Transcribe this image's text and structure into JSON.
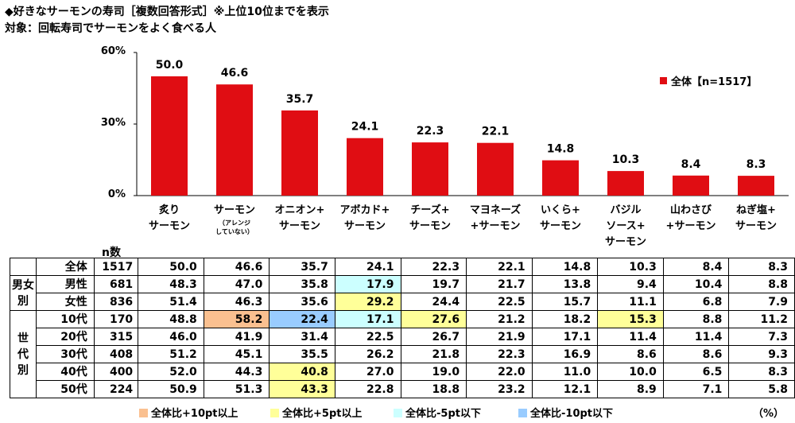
{
  "title_line1": "◆好きなサーモンの寿司［複数回答形式］※上位10位までを表示",
  "title_line2": "対象：回転寿司でサーモンをよく食べる人",
  "colors": {
    "bar": "#e00d13",
    "plus10": "#fac090",
    "plus5": "#ffff99",
    "minus5": "#ccffff",
    "minus10": "#99ccff"
  },
  "chart_data": {
    "type": "bar",
    "categories": [
      {
        "line1": "炙り",
        "line2": "サーモン",
        "sub": ""
      },
      {
        "line1": "サーモン",
        "line2": "",
        "sub": "（アレンジ していない）"
      },
      {
        "line1": "オニオン+",
        "line2": "サーモン",
        "sub": ""
      },
      {
        "line1": "アボカド+",
        "line2": "サーモン",
        "sub": ""
      },
      {
        "line1": "チーズ+",
        "line2": "サーモン",
        "sub": ""
      },
      {
        "line1": "マヨネーズ",
        "line2": "+サーモン",
        "sub": ""
      },
      {
        "line1": "いくら+",
        "line2": "サーモン",
        "sub": ""
      },
      {
        "line1": "バジル",
        "line2": "ソース+",
        "line3": "サーモン",
        "sub": ""
      },
      {
        "line1": "山わさび",
        "line2": "+サーモン",
        "sub": ""
      },
      {
        "line1": "ねぎ塩+",
        "line2": "サーモン",
        "sub": ""
      }
    ],
    "series": [
      {
        "name": "全体【n=1517】",
        "values": [
          50.0,
          46.6,
          35.7,
          24.1,
          22.3,
          22.1,
          14.8,
          10.3,
          8.4,
          8.3
        ]
      }
    ],
    "value_labels": [
      "50.0",
      "46.6",
      "35.7",
      "24.1",
      "22.3",
      "22.1",
      "14.8",
      "10.3",
      "8.4",
      "8.3"
    ],
    "yticks": [
      "60%",
      "30%",
      "0%"
    ],
    "ylim": [
      0,
      60
    ],
    "legend_position": "top-right",
    "table": {
      "n_header": "n数",
      "rows": [
        {
          "group": "",
          "label": "全体",
          "n": "1517",
          "values": [
            "50.0",
            "46.6",
            "35.7",
            "24.1",
            "22.3",
            "22.1",
            "14.8",
            "10.3",
            "8.4",
            "8.3"
          ],
          "hl": [
            "",
            "",
            "",
            "",
            "",
            "",
            "",
            "",
            "",
            ""
          ]
        },
        {
          "group": "男女別",
          "label": "男性",
          "n": "681",
          "values": [
            "48.3",
            "47.0",
            "35.8",
            "17.9",
            "19.7",
            "21.7",
            "13.8",
            "9.4",
            "10.4",
            "8.8"
          ],
          "hl": [
            "",
            "",
            "",
            "minus5",
            "",
            "",
            "",
            "",
            "",
            ""
          ]
        },
        {
          "group": "",
          "label": "女性",
          "n": "836",
          "values": [
            "51.4",
            "46.3",
            "35.6",
            "29.2",
            "24.4",
            "22.5",
            "15.7",
            "11.1",
            "6.8",
            "7.9"
          ],
          "hl": [
            "",
            "",
            "",
            "plus5",
            "",
            "",
            "",
            "",
            "",
            ""
          ]
        },
        {
          "group": "世代別",
          "label": "10代",
          "n": "170",
          "values": [
            "48.8",
            "58.2",
            "22.4",
            "17.1",
            "27.6",
            "21.2",
            "18.2",
            "15.3",
            "8.8",
            "11.2"
          ],
          "hl": [
            "",
            "plus10",
            "minus10",
            "minus5",
            "plus5",
            "",
            "",
            "plus5",
            "",
            ""
          ]
        },
        {
          "group": "",
          "label": "20代",
          "n": "315",
          "values": [
            "46.0",
            "41.9",
            "31.4",
            "22.5",
            "26.7",
            "21.9",
            "17.1",
            "11.4",
            "11.4",
            "7.3"
          ],
          "hl": [
            "",
            "",
            "",
            "",
            "",
            "",
            "",
            "",
            "",
            ""
          ]
        },
        {
          "group": "",
          "label": "30代",
          "n": "408",
          "values": [
            "51.2",
            "45.1",
            "35.5",
            "26.2",
            "21.8",
            "22.3",
            "16.9",
            "8.6",
            "8.6",
            "9.3"
          ],
          "hl": [
            "",
            "",
            "",
            "",
            "",
            "",
            "",
            "",
            "",
            ""
          ]
        },
        {
          "group": "",
          "label": "40代",
          "n": "400",
          "values": [
            "52.0",
            "44.3",
            "40.8",
            "27.0",
            "19.0",
            "22.0",
            "11.0",
            "10.0",
            "6.5",
            "8.3"
          ],
          "hl": [
            "",
            "",
            "plus5",
            "",
            "",
            "",
            "",
            "",
            "",
            ""
          ]
        },
        {
          "group": "",
          "label": "50代",
          "n": "224",
          "values": [
            "50.9",
            "51.3",
            "43.3",
            "22.8",
            "18.8",
            "23.2",
            "12.1",
            "8.9",
            "7.1",
            "5.8"
          ],
          "hl": [
            "",
            "",
            "plus5",
            "",
            "",
            "",
            "",
            "",
            "",
            ""
          ]
        }
      ]
    }
  },
  "footnotes": {
    "plus10": "全体比+10pt以上",
    "plus5": "全体比+5pt以上",
    "minus5": "全体比-5pt以下",
    "minus10": "全体比-10pt以下",
    "unit": "（%）"
  }
}
